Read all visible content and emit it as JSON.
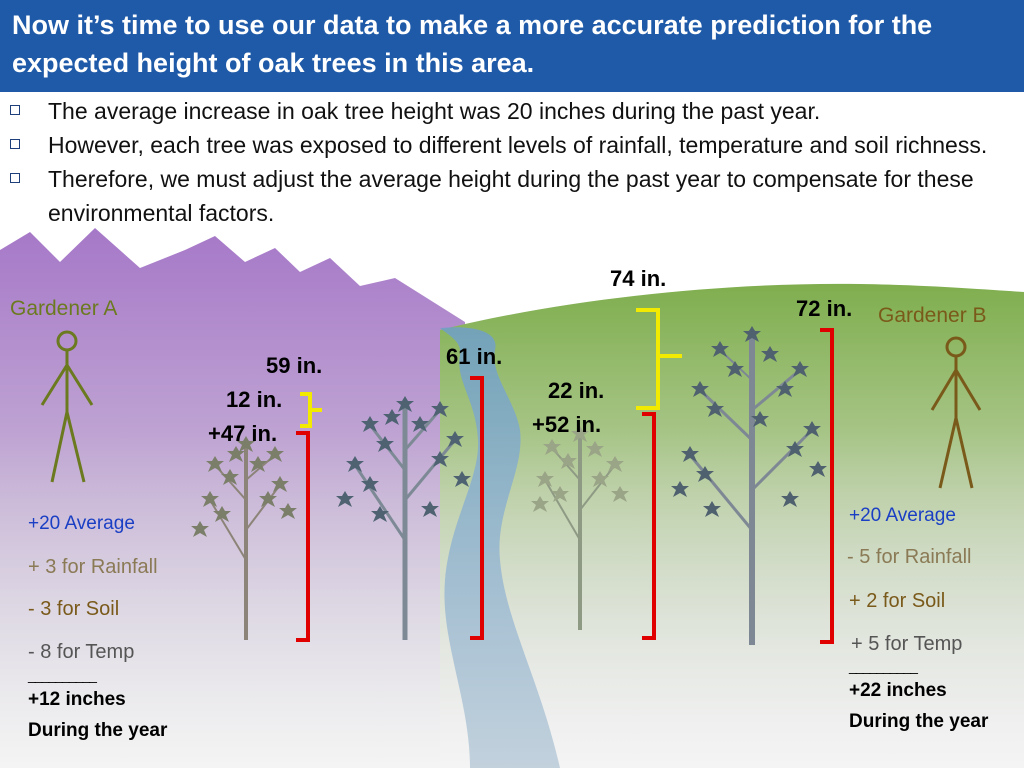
{
  "title": "Now it’s time to use our data to make a more accurate prediction for the expected height of oak trees in this area.",
  "bullets": [
    "The average increase in oak tree height was 20 inches during the past year.",
    "However, each tree was exposed to different levels of rainfall, temperature and soil richness.",
    "Therefore, we must adjust the average height during the past year to compensate for these environmental factors."
  ],
  "gardener_a": {
    "name": "Gardener A",
    "measure_total": "59 in.",
    "measure_gain": "12 in.",
    "measure_base": "+47 in.",
    "tree2_total": "61 in.",
    "average": "+20 Average",
    "rainfall": "+ 3 for Rainfall",
    "soil": "- 3 for Soil",
    "temp": "- 8 for Temp",
    "rule": "__________",
    "result": "+12 inches",
    "result_period": "During the year"
  },
  "gardener_b": {
    "name": "Gardener B",
    "measure_total": "74 in.",
    "measure_gain": "22 in.",
    "measure_base": "+52 in.",
    "tree2_total": "72 in.",
    "average": "+20 Average",
    "rainfall": "- 5 for Rainfall",
    "soil": "+ 2 for Soil",
    "temp": "+ 5 for Temp",
    "rule": "__________",
    "result": "+22 inches",
    "result_period": "During the year"
  },
  "colors": {
    "title_bg": "#1f5aa8",
    "average_text": "#1a3fc4",
    "adjustment_text": "#8a7a55",
    "gardener_a": "#6b7a1f",
    "gardener_b": "#7a5a1a",
    "bracket_red": "#e00000",
    "bracket_yellow": "#f2ea00"
  }
}
